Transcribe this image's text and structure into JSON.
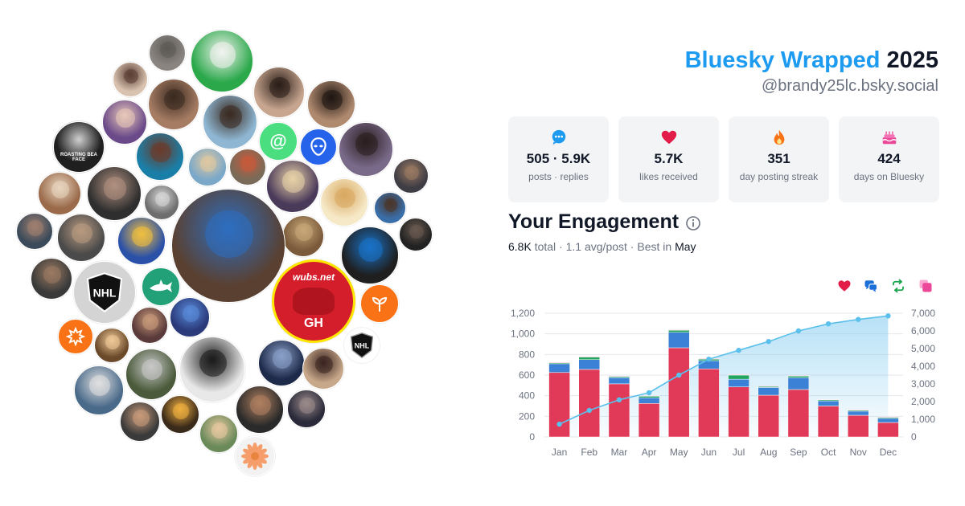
{
  "header": {
    "brand": "Bluesky Wrapped",
    "year": "2025",
    "handle": "@brandy25lc.bsky.social"
  },
  "stats": [
    {
      "icon": "chat-bubble-icon",
      "color": "#1d9bf0",
      "value": "505 · 5.9K",
      "label": "posts · replies"
    },
    {
      "icon": "heart-icon",
      "color": "#e11d48",
      "value": "5.7K",
      "label": "likes received"
    },
    {
      "icon": "flame-icon",
      "color": "#f97316",
      "value": "351",
      "label": "day posting streak"
    },
    {
      "icon": "cake-icon",
      "color": "#ec4899",
      "value": "424",
      "label": "days on Bluesky"
    }
  ],
  "engagement": {
    "title": "Your Engagement",
    "total": "6.8K",
    "total_label": "total",
    "avg": "1.1 avg/post",
    "best_prefix": "Best in",
    "best_month": "May"
  },
  "legend": [
    {
      "icon": "heart-icon",
      "color": "#e11d48"
    },
    {
      "icon": "reply-icon",
      "color": "#1d6fd8"
    },
    {
      "icon": "repost-icon",
      "color": "#16a34a"
    },
    {
      "icon": "quote-icon",
      "color": "#ec4899"
    }
  ],
  "colors": {
    "accent": "#1d9bf0",
    "likes": "#e03a58",
    "replies": "#3b82d6",
    "reposts": "#22a55e",
    "quotes": "#ec4899",
    "cumulative": "#5bc0eb"
  },
  "avatars": [
    {
      "name": "avatar-grey-cat",
      "bg": "#8a8580",
      "accent": "#5d5955"
    },
    {
      "name": "avatar-joker",
      "bg": "#2aa84a",
      "accent": "#f3f3f0"
    },
    {
      "name": "avatar-woman-selfie",
      "bg": "#d9c3b0",
      "accent": "#5a3d33"
    },
    {
      "name": "avatar-couple",
      "bg": "#a67c63",
      "accent": "#3a2a20"
    },
    {
      "name": "avatar-man-smiling",
      "bg": "#c7a58f",
      "accent": "#2a1e18"
    },
    {
      "name": "avatar-woman-glasses",
      "bg": "#b08a6f",
      "accent": "#1f1612"
    },
    {
      "name": "avatar-woman-purple",
      "bg": "#6b4a8a",
      "accent": "#e8c8b8"
    },
    {
      "name": "avatar-woman-smile",
      "bg": "#8fb7d3",
      "accent": "#3a2a20"
    },
    {
      "name": "avatar-roast-betty",
      "bg": "#1f1f1f",
      "accent": "#c9c9c9"
    },
    {
      "name": "avatar-woman-teal",
      "bg": "#1a7fa8",
      "accent": "#6b3b2a"
    },
    {
      "name": "avatar-couple-blonde",
      "bg": "#7ba8c9",
      "accent": "#e0c9a0"
    },
    {
      "name": "avatar-wwe",
      "bg": "#7a6a58",
      "accent": "#c85a3a"
    },
    {
      "name": "avatar-blonde-woman",
      "bg": "#4a3a5a",
      "accent": "#e8d2a8"
    },
    {
      "name": "avatar-glasses-woman",
      "bg": "#7a6a8a",
      "accent": "#2a1e1e"
    },
    {
      "name": "avatar-woman-curly",
      "bg": "#3e3c44",
      "accent": "#9a7a62"
    },
    {
      "name": "avatar-golden-girls",
      "bg": "#9a6a4a",
      "accent": "#e8d6c0"
    },
    {
      "name": "avatar-woman-sad",
      "bg": "#2e2e2e",
      "accent": "#b09080"
    },
    {
      "name": "avatar-classic-woman",
      "bg": "#6e6e6e",
      "accent": "#d8d8d8"
    },
    {
      "name": "avatar-dog-sketch",
      "bg": "#f6e9c8",
      "accent": "#d8a860"
    },
    {
      "name": "avatar-woman-blue",
      "bg": "#3a6ea8",
      "accent": "#4a3428"
    },
    {
      "name": "avatar-musicians",
      "bg": "#7a5a3a",
      "accent": "#c8a878"
    },
    {
      "name": "avatar-cartoon-band",
      "bg": "#2a50a8",
      "accent": "#f0c040"
    },
    {
      "name": "avatar-profile-main",
      "bg": "#5a4030",
      "accent": "#2e6ec0"
    },
    {
      "name": "avatar-hooded",
      "bg": "#222222",
      "accent": "#6a5a50"
    },
    {
      "name": "avatar-bearded",
      "bg": "#4a4a4a",
      "accent": "#b89a80"
    },
    {
      "name": "avatar-man-dark",
      "bg": "#3a4a5a",
      "accent": "#a08070"
    },
    {
      "name": "avatar-lions-fan",
      "bg": "#1f1f1f",
      "accent": "#1a73c8"
    },
    {
      "name": "avatar-glasses-man",
      "bg": "#3a3a3a",
      "accent": "#9a7a62"
    },
    {
      "name": "avatar-woman-shirt",
      "bg": "#5a3a3a",
      "accent": "#c89a7a"
    },
    {
      "name": "avatar-blue-hair",
      "bg": "#2a3a7a",
      "accent": "#5a8ad8"
    },
    {
      "name": "avatar-castle",
      "bg": "#1e2a4a",
      "accent": "#8aa0c8"
    },
    {
      "name": "avatar-woman-portrait",
      "bg": "#c8a88a",
      "accent": "#3a2420"
    },
    {
      "name": "avatar-anime",
      "bg": "#6a4a2a",
      "accent": "#f0c898"
    },
    {
      "name": "avatar-black-cat",
      "bg": "#e8e8e8",
      "accent": "#1a1a1a"
    },
    {
      "name": "avatar-cats",
      "bg": "#4a5a3a",
      "accent": "#c8c8c8"
    },
    {
      "name": "avatar-woman-sunglasses",
      "bg": "#4a6a8a",
      "accent": "#e0e0e0"
    },
    {
      "name": "avatar-man-suit",
      "bg": "#3a3a3a",
      "accent": "#c89a7a"
    },
    {
      "name": "avatar-candle",
      "bg": "#3a2a1a",
      "accent": "#f0b040"
    },
    {
      "name": "avatar-woman-dark-hair",
      "bg": "#2a2a2a",
      "accent": "#b08060"
    },
    {
      "name": "avatar-woman-garden",
      "bg": "#6a8a5a",
      "accent": "#e8c8a0"
    },
    {
      "name": "avatar-woman-black",
      "bg": "#2a2a3a",
      "accent": "#9a8a8a"
    },
    {
      "name": "avatar-wednesday",
      "bg": "#d8d8d8",
      "accent": "#1a1a1a"
    }
  ],
  "badge_avatars": {
    "at_icon": "@",
    "nhl_big": "NHL",
    "nhl_small": "NHL",
    "wubs_text": "wubs.net",
    "wubs_initials": "GH",
    "roast_text": "ROASTING BEA FACE"
  },
  "chart_data": {
    "type": "bar",
    "categories": [
      "Jan",
      "Feb",
      "Mar",
      "Apr",
      "May",
      "Jun",
      "Jul",
      "Aug",
      "Sep",
      "Oct",
      "Nov",
      "Dec"
    ],
    "series": [
      {
        "values": [
          625,
          655,
          515,
          325,
          865,
          660,
          485,
          405,
          460,
          300,
          210,
          140
        ]
      },
      {
        "values": [
          85,
          95,
          60,
          55,
          150,
          80,
          75,
          75,
          115,
          50,
          40,
          40
        ]
      },
      {
        "values": [
          10,
          25,
          10,
          15,
          20,
          15,
          40,
          10,
          15,
          10,
          10,
          10
        ]
      },
      {
        "values": [
          5,
          5,
          5,
          5,
          5,
          5,
          5,
          5,
          5,
          5,
          5,
          5
        ]
      }
    ],
    "cumulative": {
      "axis": "right",
      "values": [
        720,
        1500,
        2100,
        2500,
        3500,
        4400,
        4900,
        5400,
        6000,
        6400,
        6650,
        6850
      ]
    },
    "y_left": {
      "ticks": [
        "0",
        "200",
        "400",
        "600",
        "800",
        "1,000",
        "1,200"
      ],
      "min": 0,
      "max": 1200
    },
    "y_right": {
      "ticks": [
        "0",
        "1,000",
        "2,000",
        "3,000",
        "4,000",
        "5,000",
        "6,000",
        "7,000"
      ],
      "min": 0,
      "max": 7000
    },
    "grid": true,
    "stacked": true
  }
}
